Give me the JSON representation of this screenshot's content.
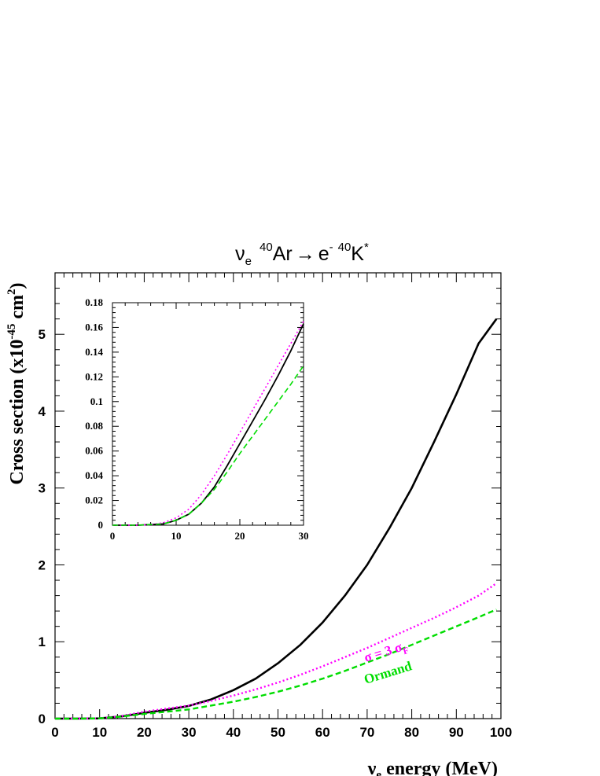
{
  "chart_data": [
    {
      "type": "line",
      "title_parts": {
        "nu": "ν",
        "nu_sub": "e",
        "a_sup": "40",
        "ar": "Ar",
        "arrow": "→",
        "e": "e",
        "e_sup": "-",
        "b_sup": "40",
        "k": "K",
        "k_sup": "*"
      },
      "xlabel_parts": {
        "nu": "ν",
        "nu_sub": "e",
        "rest": "energy (MeV)"
      },
      "ylabel_parts": {
        "main": "Cross section (x10",
        "exp": "-45",
        "unit": " cm",
        "unit_exp": "2",
        "close": ")"
      },
      "xlim": [
        0,
        100
      ],
      "ylim": [
        0,
        5.8
      ],
      "xticks": [
        "0",
        "10",
        "20",
        "30",
        "40",
        "50",
        "60",
        "70",
        "80",
        "90",
        "100"
      ],
      "yticks": [
        "0",
        "1",
        "2",
        "3",
        "4",
        "5"
      ],
      "x": [
        0,
        5,
        10,
        15,
        20,
        25,
        30,
        35,
        40,
        45,
        50,
        55,
        60,
        65,
        70,
        75,
        80,
        85,
        90,
        95,
        99
      ],
      "series": [
        {
          "color": "#000000",
          "style": "solid",
          "values": [
            0,
            0,
            0.003,
            0.03,
            0.075,
            0.115,
            0.165,
            0.25,
            0.37,
            0.52,
            0.72,
            0.96,
            1.25,
            1.6,
            2.0,
            2.48,
            3.0,
            3.6,
            4.22,
            4.88,
            5.2
          ]
        },
        {
          "name_parts": {
            "sigma": "σ = 3 σ",
            "sub": "F"
          },
          "color": "#ff00ff",
          "style": "dotted",
          "values": [
            0,
            0,
            0.004,
            0.035,
            0.09,
            0.13,
            0.17,
            0.23,
            0.3,
            0.38,
            0.47,
            0.57,
            0.68,
            0.8,
            0.92,
            1.05,
            1.18,
            1.31,
            1.45,
            1.6,
            1.76
          ]
        },
        {
          "name": "Ormand",
          "color": "#00dd00",
          "style": "dashed",
          "values": [
            0,
            0,
            0.003,
            0.028,
            0.06,
            0.09,
            0.12,
            0.17,
            0.22,
            0.28,
            0.35,
            0.43,
            0.52,
            0.62,
            0.73,
            0.84,
            0.96,
            1.08,
            1.2,
            1.32,
            1.42
          ]
        }
      ]
    },
    {
      "type": "line",
      "xlim": [
        0,
        30
      ],
      "ylim": [
        0,
        0.18
      ],
      "xticks": [
        "0",
        "10",
        "20",
        "30"
      ],
      "yticks": [
        "0",
        "0.02",
        "0.04",
        "0.06",
        "0.08",
        "0.1",
        "0.12",
        "0.14",
        "0.16",
        "0.18"
      ],
      "x": [
        0,
        2,
        4,
        6,
        8,
        10,
        12,
        14,
        16,
        18,
        20,
        22,
        24,
        26,
        28,
        30
      ],
      "series": [
        {
          "color": "#000000",
          "style": "solid",
          "values": [
            0,
            0,
            0,
            0.0005,
            0.001,
            0.004,
            0.009,
            0.018,
            0.031,
            0.048,
            0.066,
            0.084,
            0.102,
            0.121,
            0.141,
            0.163
          ]
        },
        {
          "color": "#ff00ff",
          "style": "dotted",
          "values": [
            0,
            0,
            0,
            0.0005,
            0.002,
            0.006,
            0.013,
            0.025,
            0.04,
            0.057,
            0.075,
            0.093,
            0.111,
            0.129,
            0.147,
            0.165
          ]
        },
        {
          "color": "#00dd00",
          "style": "dashed",
          "values": [
            0,
            0,
            0,
            0.0005,
            0.001,
            0.004,
            0.009,
            0.018,
            0.029,
            0.043,
            0.058,
            0.072,
            0.086,
            0.1,
            0.114,
            0.129
          ]
        }
      ]
    }
  ]
}
